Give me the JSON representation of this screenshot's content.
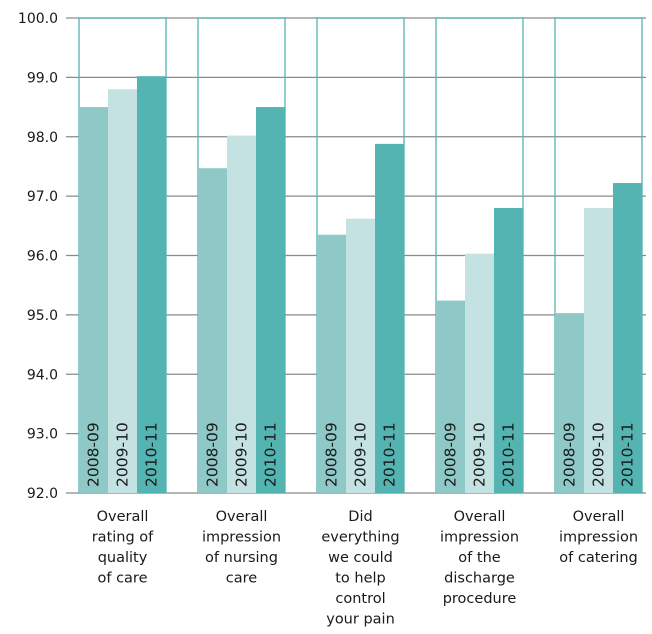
{
  "chart_data": {
    "type": "bar",
    "title": "",
    "xlabel": "",
    "ylabel": "",
    "ylim": [
      92.0,
      100.0
    ],
    "yticks": [
      "100.0",
      "99.0",
      "98.0",
      "97.0",
      "96.0",
      "95.0",
      "94.0",
      "93.0",
      "92.0"
    ],
    "grid": true,
    "categories": [
      [
        "Overall",
        "rating of",
        "quality",
        "of care"
      ],
      [
        "Overall",
        "impression",
        "of nursing",
        "care"
      ],
      [
        "Did",
        "everything",
        "we could",
        "to help",
        "control",
        "your pain"
      ],
      [
        "Overall",
        "impression",
        "of the",
        "discharge",
        "procedure"
      ],
      [
        "Overall",
        "impression",
        "of catering"
      ]
    ],
    "series": [
      {
        "name": "2008-09",
        "color": "#8ec9c8",
        "values": [
          98.5,
          97.47,
          96.35,
          95.24,
          95.03
        ]
      },
      {
        "name": "2009-10",
        "color": "#c4e2e1",
        "values": [
          98.8,
          98.02,
          96.62,
          96.03,
          96.8
        ]
      },
      {
        "name": "2010-11",
        "color": "#53b4b2",
        "values": [
          99.02,
          98.5,
          97.88,
          96.8,
          97.22
        ]
      }
    ],
    "outline_color": "#53b4b2"
  }
}
